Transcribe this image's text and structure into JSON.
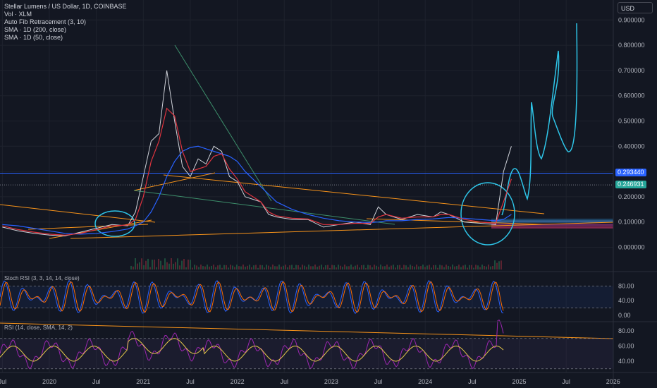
{
  "legend": {
    "title": "Stellar Lumens / US Dollar, 1D, COINBASE",
    "volume": "Vol · XLM",
    "fib": "Auto Fib Retracement (3, 10)",
    "sma200": "SMA · 1D (200, close)",
    "sma50": "SMA · 1D (50, close)"
  },
  "currency_button": "USD",
  "price_labels": {
    "blue_line": "0.293440",
    "current": "0.246931"
  },
  "colors": {
    "background": "#131722",
    "price": "#cfd2d9",
    "sma50": "#e0343f",
    "sma200": "#2962ff",
    "trendline": "#f7931a",
    "annotation": "#2ec5e8",
    "stoch_k": "#2962ff",
    "stoch_d": "#ff6d00",
    "rsi": "#9c27b0",
    "rsi_ma": "#e6c84a",
    "blue_line_label": "#2962ff",
    "current_label": "#26a69a"
  },
  "panes": {
    "stoch_title": "Stoch RSI (3, 3, 14, 14, close)",
    "rsi_title": "RSI (14, close, SMA, 14, 2)"
  },
  "chart_data": [
    {
      "type": "line",
      "title": "Stellar Lumens / US Dollar, 1D, COINBASE",
      "y_scale": "linear",
      "ylim": [
        -0.08,
        0.93
      ],
      "y_ticks": [
        "0.900000",
        "0.800000",
        "0.700000",
        "0.600000",
        "0.500000",
        "0.400000",
        "0.300000",
        "0.200000",
        "0.100000",
        "0.000000"
      ],
      "x_ticks": [
        "Jul",
        "2020",
        "Jul",
        "2021",
        "Jul",
        "2022",
        "Jul",
        "2023",
        "Jul",
        "2024",
        "Jul",
        "2025",
        "Jul",
        "2026"
      ],
      "x": [
        "2019-07",
        "2019-09",
        "2019-11",
        "2020-01",
        "2020-03",
        "2020-05",
        "2020-07",
        "2020-09",
        "2020-11",
        "2020-12",
        "2021-01",
        "2021-02",
        "2021-03",
        "2021-04",
        "2021-05",
        "2021-06",
        "2021-07",
        "2021-08",
        "2021-09",
        "2021-10",
        "2021-11",
        "2021-12",
        "2022-01",
        "2022-02",
        "2022-03",
        "2022-04",
        "2022-05",
        "2022-06",
        "2022-08",
        "2022-10",
        "2022-12",
        "2023-02",
        "2023-04",
        "2023-06",
        "2023-07",
        "2023-08",
        "2023-10",
        "2023-12",
        "2024-02",
        "2024-03",
        "2024-04",
        "2024-06",
        "2024-08",
        "2024-10",
        "2024-11",
        "2024-12"
      ],
      "series": [
        {
          "name": "XLM",
          "values": [
            0.08,
            0.065,
            0.055,
            0.048,
            0.045,
            0.06,
            0.075,
            0.09,
            0.085,
            0.14,
            0.28,
            0.42,
            0.45,
            0.7,
            0.5,
            0.32,
            0.28,
            0.35,
            0.33,
            0.4,
            0.38,
            0.28,
            0.26,
            0.2,
            0.19,
            0.18,
            0.13,
            0.12,
            0.11,
            0.11,
            0.08,
            0.09,
            0.1,
            0.09,
            0.16,
            0.13,
            0.11,
            0.13,
            0.12,
            0.14,
            0.13,
            0.1,
            0.095,
            0.09,
            0.3,
            0.4
          ]
        },
        {
          "name": "SMA 50",
          "values": [
            0.085,
            0.07,
            0.06,
            0.052,
            0.048,
            0.055,
            0.07,
            0.085,
            0.088,
            0.11,
            0.2,
            0.34,
            0.42,
            0.55,
            0.52,
            0.38,
            0.3,
            0.31,
            0.32,
            0.36,
            0.37,
            0.31,
            0.27,
            0.22,
            0.2,
            0.18,
            0.14,
            0.125,
            0.115,
            0.112,
            0.09,
            0.09,
            0.095,
            0.095,
            0.12,
            0.13,
            0.115,
            0.12,
            0.12,
            0.13,
            0.13,
            0.11,
            0.1,
            0.095,
            0.18,
            0.27
          ]
        },
        {
          "name": "SMA 200",
          "values": [
            0.09,
            0.085,
            0.075,
            0.065,
            0.055,
            0.052,
            0.055,
            0.062,
            0.072,
            0.085,
            0.1,
            0.14,
            0.2,
            0.28,
            0.34,
            0.38,
            0.395,
            0.4,
            0.39,
            0.38,
            0.37,
            0.36,
            0.34,
            0.3,
            0.27,
            0.24,
            0.21,
            0.18,
            0.15,
            0.13,
            0.115,
            0.105,
            0.1,
            0.098,
            0.1,
            0.105,
            0.105,
            0.11,
            0.112,
            0.115,
            0.118,
            0.115,
            0.11,
            0.105,
            0.11,
            0.13
          ]
        }
      ],
      "horizontal_lines": [
        0.29344,
        0.246931
      ]
    },
    {
      "type": "line",
      "title": "Stoch RSI (3, 3, 14, 14, close)",
      "ylim": [
        -5,
        100
      ],
      "y_ticks": [
        "80.00",
        "40.00",
        "0.00"
      ],
      "bands": [
        80,
        20
      ]
    },
    {
      "type": "line",
      "title": "RSI (14, close, SMA, 14, 2)",
      "ylim": [
        30,
        94
      ],
      "y_ticks": [
        "80.00",
        "60.00",
        "40.00"
      ],
      "bands": [
        70,
        30
      ]
    }
  ]
}
